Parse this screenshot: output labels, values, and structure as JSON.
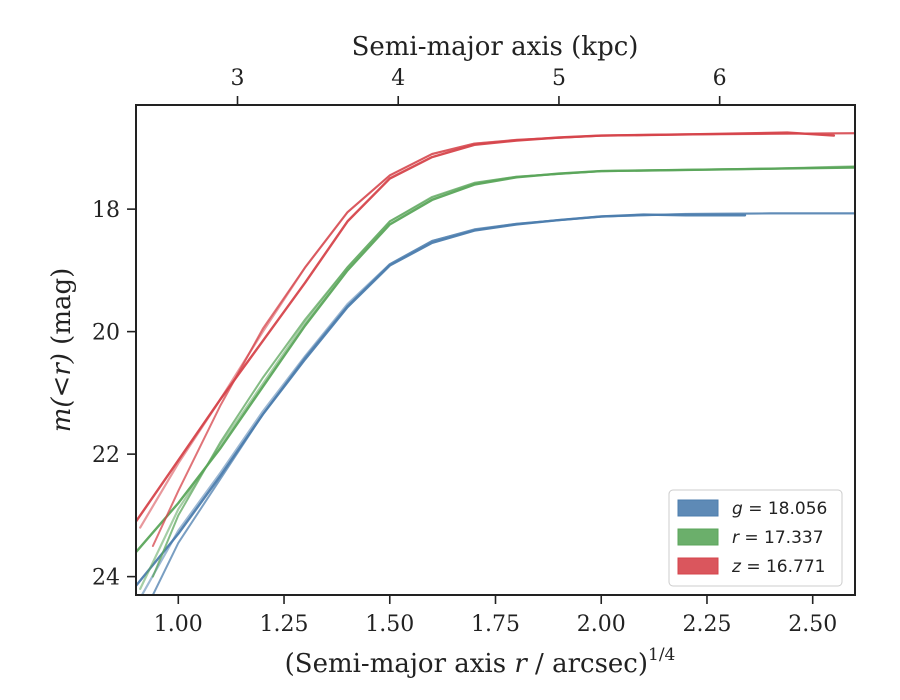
{
  "chart_data": {
    "type": "line",
    "xlabel": "(Semi-major axis r / arcsec)^{1/4}",
    "xlabel_parts": {
      "prefix": "(Semi-major axis ",
      "var": "r",
      "suffix": " / arcsec)",
      "exponent": "1/4"
    },
    "top_xlabel": "Semi-major axis (kpc)",
    "ylabel": "m(<r) (mag)",
    "ylabel_parts": {
      "math": "m(<r)",
      "unit": " (mag)"
    },
    "xlim": [
      0.9,
      2.6
    ],
    "ylim": [
      24.3,
      16.3
    ],
    "y_inverted": true,
    "x_ticks": [
      1.0,
      1.25,
      1.5,
      1.75,
      2.0,
      2.25,
      2.5
    ],
    "x_tick_labels": [
      "1.00",
      "1.25",
      "1.50",
      "1.75",
      "2.00",
      "2.25",
      "2.50"
    ],
    "y_ticks": [
      18,
      20,
      22,
      24
    ],
    "y_tick_labels": [
      "18",
      "20",
      "22",
      "24"
    ],
    "top_ticks_x": [
      1.14,
      1.52,
      1.9,
      2.28
    ],
    "top_tick_labels": [
      "3",
      "4",
      "5",
      "6"
    ],
    "legend_position": "lower-right",
    "series": [
      {
        "name": "g = 18.056",
        "band": "g",
        "mag": "18.056",
        "color": "#4C7DAE",
        "curves": [
          {
            "x": [
              0.9,
              1.0,
              1.1,
              1.2,
              1.3,
              1.4,
              1.5,
              1.6,
              1.7,
              1.8,
              1.9,
              2.0,
              2.1,
              2.2,
              2.34
            ],
            "y": [
              24.15,
              23.3,
              22.35,
              21.35,
              20.45,
              19.6,
              18.92,
              18.55,
              18.35,
              18.25,
              18.18,
              18.12,
              18.09,
              18.1,
              18.1
            ]
          },
          {
            "x": [
              0.91,
              1.0,
              1.1,
              1.2,
              1.3,
              1.4,
              1.5,
              1.6,
              1.7,
              1.8,
              2.0,
              2.2,
              2.4,
              2.6
            ],
            "y": [
              24.35,
              23.25,
              22.3,
              21.3,
              20.4,
              19.55,
              18.9,
              18.52,
              18.34,
              18.24,
              18.12,
              18.08,
              18.07,
              18.07
            ]
          },
          {
            "x": [
              0.94,
              1.0,
              1.1,
              1.2,
              1.3,
              1.4,
              1.5,
              1.6,
              1.7,
              1.8,
              2.0,
              2.2,
              2.4,
              2.6
            ],
            "y": [
              24.3,
              23.45,
              22.4,
              21.35,
              20.42,
              19.58,
              18.9,
              18.52,
              18.33,
              18.24,
              18.12,
              18.08,
              18.07,
              18.07
            ]
          }
        ]
      },
      {
        "name": "r = 17.337",
        "band": "r",
        "mag": "17.337",
        "color": "#5BA65B",
        "curves": [
          {
            "x": [
              0.9,
              1.0,
              1.1,
              1.2,
              1.3,
              1.4,
              1.5,
              1.6,
              1.7,
              1.8,
              1.9,
              2.0,
              2.2,
              2.4,
              2.6
            ],
            "y": [
              23.6,
              22.8,
              21.9,
              20.9,
              19.9,
              19.0,
              18.25,
              17.85,
              17.6,
              17.48,
              17.42,
              17.38,
              17.36,
              17.34,
              17.32
            ]
          },
          {
            "x": [
              0.91,
              1.0,
              1.1,
              1.2,
              1.3,
              1.4,
              1.5,
              1.6,
              1.7,
              1.8,
              2.0,
              2.2,
              2.4,
              2.6
            ],
            "y": [
              24.2,
              22.9,
              21.85,
              20.85,
              19.85,
              18.95,
              18.2,
              17.82,
              17.58,
              17.47,
              17.38,
              17.36,
              17.34,
              17.3
            ]
          },
          {
            "x": [
              0.94,
              1.0,
              1.1,
              1.2,
              1.3,
              1.4,
              1.5,
              1.6,
              1.7,
              1.8,
              2.0,
              2.2,
              2.4,
              2.6
            ],
            "y": [
              24.0,
              23.0,
              21.8,
              20.75,
              19.8,
              18.95,
              18.2,
              17.8,
              17.57,
              17.47,
              17.38,
              17.36,
              17.34,
              17.31
            ]
          }
        ]
      },
      {
        "name": "z = 16.771",
        "band": "z",
        "mag": "16.771",
        "color": "#D6444B",
        "curves": [
          {
            "x": [
              0.9,
              1.0,
              1.1,
              1.2,
              1.3,
              1.4,
              1.5,
              1.6,
              1.7,
              1.8,
              1.9,
              2.0,
              2.2,
              2.44,
              2.55
            ],
            "y": [
              23.1,
              22.1,
              21.1,
              20.15,
              19.2,
              18.2,
              17.5,
              17.15,
              16.95,
              16.88,
              16.83,
              16.8,
              16.78,
              16.75,
              16.8
            ]
          },
          {
            "x": [
              0.91,
              1.0,
              1.1,
              1.2,
              1.3,
              1.4,
              1.5,
              1.6,
              1.7,
              1.8,
              2.0,
              2.2,
              2.4,
              2.6
            ],
            "y": [
              23.2,
              22.15,
              21.1,
              20.0,
              18.95,
              18.05,
              17.45,
              17.1,
              16.93,
              16.87,
              16.8,
              16.78,
              16.77,
              16.76
            ]
          },
          {
            "x": [
              0.94,
              1.0,
              1.1,
              1.2,
              1.3,
              1.4,
              1.5,
              1.6,
              1.7,
              1.8,
              2.0,
              2.2,
              2.4,
              2.6
            ],
            "y": [
              23.5,
              22.6,
              21.2,
              19.95,
              18.95,
              18.05,
              17.45,
              17.1,
              16.93,
              16.87,
              16.8,
              16.78,
              16.77,
              16.76
            ]
          }
        ]
      }
    ]
  }
}
